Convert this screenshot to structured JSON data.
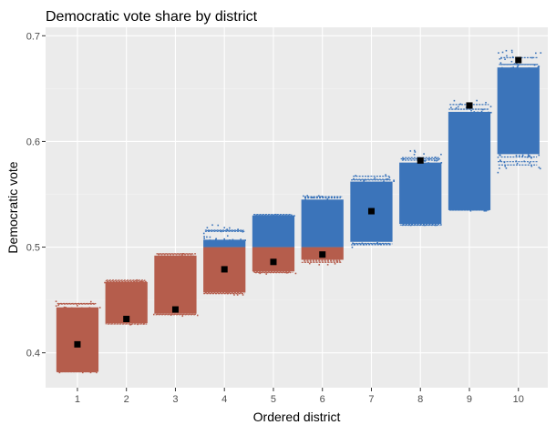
{
  "colors": {
    "panel_background": "#ebebeb",
    "grid_major": "#ffffff",
    "grid_minor": "#f3f3f3",
    "republican": "#b55d4c",
    "democratic": "#3b74ba",
    "median_marker": "#000000",
    "tick_mark": "#333333"
  },
  "chart_data": {
    "type": "scatter",
    "title": "Democratic vote share by district",
    "xlabel": "Ordered district",
    "ylabel": "Democratic vote",
    "xlim": [
      0.35,
      10.6
    ],
    "ylim": [
      0.367,
      0.708
    ],
    "x_ticks": [
      "1",
      "2",
      "3",
      "4",
      "5",
      "6",
      "7",
      "8",
      "9",
      "10"
    ],
    "y_ticks": [
      {
        "value": 0.4,
        "label": "0.4"
      },
      {
        "value": 0.5,
        "label": "0.5"
      },
      {
        "value": 0.6,
        "label": "0.6"
      },
      {
        "value": 0.7,
        "label": "0.7"
      }
    ],
    "threshold": 0.5,
    "grid": true,
    "legend": "none",
    "districts": [
      {
        "x": 1,
        "min": 0.382,
        "max": 0.443,
        "sparse_low": 0.382,
        "sparse_high": 0.45,
        "point": 0.408
      },
      {
        "x": 2,
        "min": 0.428,
        "max": 0.467,
        "sparse_low": 0.426,
        "sparse_high": 0.47,
        "point": 0.432
      },
      {
        "x": 3,
        "min": 0.437,
        "max": 0.492,
        "sparse_low": 0.435,
        "sparse_high": 0.495,
        "point": 0.441
      },
      {
        "x": 4,
        "min": 0.457,
        "max": 0.507,
        "sparse_low": 0.455,
        "sparse_high": 0.522,
        "point": 0.479
      },
      {
        "x": 5,
        "min": 0.477,
        "max": 0.53,
        "sparse_low": 0.475,
        "sparse_high": 0.532,
        "point": 0.486
      },
      {
        "x": 6,
        "min": 0.488,
        "max": 0.545,
        "sparse_low": 0.484,
        "sparse_high": 0.55,
        "point": 0.493
      },
      {
        "x": 7,
        "min": 0.505,
        "max": 0.562,
        "sparse_low": 0.5,
        "sparse_high": 0.57,
        "point": 0.534
      },
      {
        "x": 8,
        "min": 0.522,
        "max": 0.58,
        "sparse_low": 0.52,
        "sparse_high": 0.592,
        "point": 0.582
      },
      {
        "x": 9,
        "min": 0.535,
        "max": 0.628,
        "sparse_low": 0.535,
        "sparse_high": 0.64,
        "point": 0.634
      },
      {
        "x": 10,
        "min": 0.588,
        "max": 0.67,
        "sparse_low": 0.57,
        "sparse_high": 0.688,
        "point": 0.677
      }
    ]
  }
}
